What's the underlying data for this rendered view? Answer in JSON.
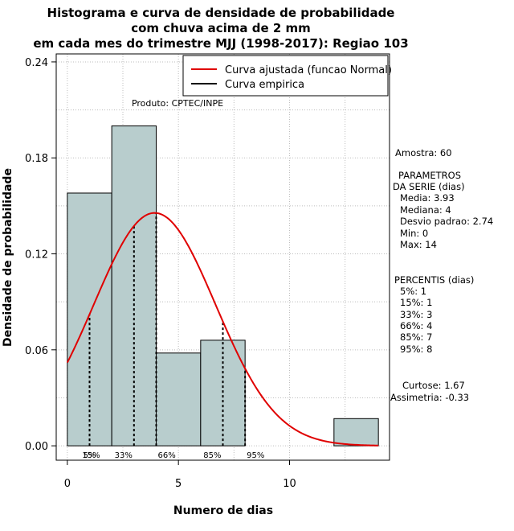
{
  "chart_data": {
    "type": "bar",
    "title_lines": [
      "Histograma e curva de densidade de probabilidade",
      "com chuva acima de 2 mm",
      "em cada mes do trimestre MJJ (1998-2017): Regiao 103"
    ],
    "xlabel": "Numero de dias",
    "ylabel": "Densidade de probabilidade",
    "xlim": [
      -0.5,
      14.5
    ],
    "ylim": [
      -0.009,
      0.245
    ],
    "x_ticks": [
      0,
      5,
      10
    ],
    "y_ticks": [
      0.0,
      0.06,
      0.12,
      0.18,
      0.24
    ],
    "y_tick_labels": [
      "0.00",
      "0.06",
      "0.12",
      "0.18",
      "0.24"
    ],
    "grid": true,
    "bin_edges": [
      0,
      2,
      4,
      6,
      8,
      10,
      12,
      14
    ],
    "densities": [
      0.158,
      0.2,
      0.058,
      0.066,
      0.0,
      0.0,
      0.017
    ],
    "bar_color": "#b8cdcd",
    "normal_curve": {
      "mean": 3.93,
      "sd": 2.74,
      "color": "#e00000"
    },
    "percentile_lines": [
      {
        "label": "5%",
        "x": 1
      },
      {
        "label": "15%",
        "x": 1
      },
      {
        "label": "33%",
        "x": 3
      },
      {
        "label": "66%",
        "x": 4
      },
      {
        "label": "85%",
        "x": 7
      },
      {
        "label": "95%",
        "x": 8
      }
    ],
    "legend": {
      "position": "top-right",
      "entries": [
        {
          "label": "Curva ajustada (funcao Normal)",
          "color": "#e00000"
        },
        {
          "label": "Curva empirica",
          "color": "#000000"
        }
      ]
    },
    "product_label": "Produto: CPTEC/INPE",
    "side_panel": {
      "sample": "Amostra: 60",
      "params_title_1": "PARAMETROS",
      "params_title_2": "DA SERIE (dias)",
      "media": "Media: 3.93",
      "mediana": "Mediana: 4",
      "desvio": "Desvio padrao: 2.74",
      "min": "Min: 0",
      "max": "Max: 14",
      "percentis_title": "PERCENTIS (dias)",
      "p5": "5%: 1",
      "p15": "15%: 1",
      "p33": "33%: 3",
      "p66": "66%: 4",
      "p85": "85%: 7",
      "p95": "95%: 8",
      "curtose": "Curtose: 1.67",
      "assimetria": "Assimetria: -0.33"
    }
  }
}
